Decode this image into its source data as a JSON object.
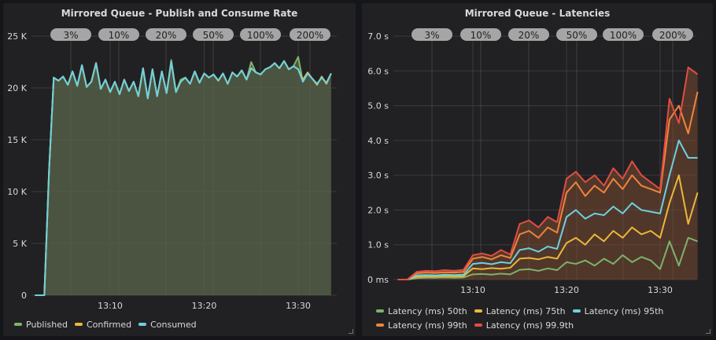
{
  "chart_data": [
    {
      "type": "area",
      "title": "Mirrored Queue - Publish and Consume Rate",
      "xlabel": "",
      "ylabel": "",
      "ylim": [
        0,
        25000
      ],
      "yticks": [
        "0",
        "5 K",
        "10 K",
        "15 K",
        "20 K",
        "25 K"
      ],
      "ytick_values": [
        0,
        5000,
        10000,
        15000,
        20000,
        25000
      ],
      "xticks": [
        "13:10",
        "13:20",
        "13:30"
      ],
      "grid": true,
      "legend": "bottom",
      "annotations": [
        "3%",
        "10%",
        "20%",
        "50%",
        "100%",
        "200%"
      ],
      "x": [
        "13:02:00",
        "13:02:30",
        "13:03:00",
        "13:03:30",
        "13:04:00",
        "13:04:30",
        "13:05:00",
        "13:05:30",
        "13:06:00",
        "13:06:30",
        "13:07:00",
        "13:07:30",
        "13:08:00",
        "13:08:30",
        "13:09:00",
        "13:09:30",
        "13:10:00",
        "13:10:30",
        "13:11:00",
        "13:11:30",
        "13:12:00",
        "13:12:30",
        "13:13:00",
        "13:13:30",
        "13:14:00",
        "13:14:30",
        "13:15:00",
        "13:15:30",
        "13:16:00",
        "13:16:30",
        "13:17:00",
        "13:17:30",
        "13:18:00",
        "13:18:30",
        "13:19:00",
        "13:19:30",
        "13:20:00",
        "13:20:30",
        "13:21:00",
        "13:21:30",
        "13:22:00",
        "13:22:30",
        "13:23:00",
        "13:23:30",
        "13:24:00",
        "13:24:30",
        "13:25:00",
        "13:25:30",
        "13:26:00",
        "13:26:30",
        "13:27:00",
        "13:27:30",
        "13:28:00",
        "13:28:30",
        "13:29:00",
        "13:29:30",
        "13:30:00",
        "13:30:30",
        "13:31:00",
        "13:31:30",
        "13:32:00",
        "13:32:30",
        "13:33:00",
        "13:33:30"
      ],
      "series": [
        {
          "name": "Published",
          "color": "#7eb26d",
          "values": [
            0,
            0,
            0,
            12000,
            21000,
            20700,
            21100,
            20300,
            21600,
            20200,
            22200,
            20100,
            20600,
            22400,
            19900,
            20800,
            19600,
            20600,
            19400,
            20800,
            19700,
            20600,
            19200,
            21900,
            19000,
            21800,
            19200,
            21600,
            19500,
            22700,
            19600,
            20800,
            21000,
            20400,
            21600,
            20500,
            21400,
            21000,
            21300,
            20700,
            21400,
            20400,
            21500,
            21100,
            21700,
            20800,
            22500,
            21500,
            21300,
            21800,
            22000,
            22400,
            21900,
            22600,
            21800,
            22100,
            23000,
            20600,
            21400,
            20900,
            20400,
            21000,
            20500,
            21400
          ]
        },
        {
          "name": "Confirmed",
          "color": "#eab839",
          "values": [
            0,
            0,
            0,
            12000,
            21000,
            20700,
            21100,
            20300,
            21600,
            20200,
            22200,
            20100,
            20600,
            22400,
            19900,
            20800,
            19600,
            20600,
            19400,
            20800,
            19700,
            20600,
            19200,
            21900,
            19000,
            21800,
            19200,
            21600,
            19500,
            22500,
            19600,
            20600,
            21000,
            20400,
            21600,
            20500,
            21400,
            21000,
            21300,
            20700,
            21400,
            20400,
            21500,
            21100,
            21700,
            20800,
            21900,
            21500,
            21300,
            21800,
            22000,
            22400,
            21900,
            22600,
            21800,
            22100,
            21800,
            20800,
            21500,
            20900,
            20300,
            21100,
            20400,
            21400
          ]
        },
        {
          "name": "Consumed",
          "color": "#6ed0e0",
          "values": [
            0,
            0,
            0,
            12000,
            21000,
            20700,
            21100,
            20300,
            21600,
            20200,
            22200,
            20100,
            20600,
            22400,
            19900,
            20800,
            19600,
            20600,
            19400,
            20800,
            19700,
            20600,
            19200,
            21900,
            19000,
            21800,
            19200,
            21600,
            19500,
            22500,
            19600,
            20600,
            21000,
            20400,
            21600,
            20500,
            21400,
            21000,
            21300,
            20700,
            21400,
            20400,
            21500,
            21100,
            21700,
            20800,
            21900,
            21500,
            21300,
            21800,
            22000,
            22400,
            21900,
            22600,
            21800,
            22100,
            21800,
            20600,
            21400,
            20900,
            20400,
            21000,
            20500,
            21400
          ]
        }
      ]
    },
    {
      "type": "line",
      "title": "Mirrored Queue - Latencies",
      "xlabel": "",
      "ylabel": "",
      "ylim": [
        0,
        7
      ],
      "yticks": [
        "0 ms",
        "1.0 s",
        "2.0 s",
        "3.0 s",
        "4.0 s",
        "5.0 s",
        "6.0 s",
        "7.0 s"
      ],
      "ytick_values": [
        0,
        1,
        2,
        3,
        4,
        5,
        6,
        7
      ],
      "xticks": [
        "13:10",
        "13:20",
        "13:30"
      ],
      "grid": true,
      "legend": "bottom",
      "annotations": [
        "3%",
        "10%",
        "20%",
        "50%",
        "100%",
        "200%"
      ],
      "x": [
        "13:02",
        "13:03",
        "13:04",
        "13:05",
        "13:06",
        "13:07",
        "13:08",
        "13:09",
        "13:10",
        "13:11",
        "13:12",
        "13:13",
        "13:14",
        "13:15",
        "13:16",
        "13:17",
        "13:18",
        "13:19",
        "13:20",
        "13:21",
        "13:22",
        "13:23",
        "13:24",
        "13:25",
        "13:26",
        "13:27",
        "13:28",
        "13:29",
        "13:30",
        "13:31",
        "13:32",
        "13:33",
        "13:34"
      ],
      "series": [
        {
          "name": "Latency (ms) 50th",
          "color": "#7eb26d",
          "values": [
            0,
            0,
            0.04,
            0.05,
            0.05,
            0.06,
            0.05,
            0.06,
            0.15,
            0.16,
            0.14,
            0.17,
            0.15,
            0.28,
            0.3,
            0.25,
            0.32,
            0.27,
            0.5,
            0.45,
            0.55,
            0.4,
            0.6,
            0.45,
            0.7,
            0.5,
            0.65,
            0.55,
            0.3,
            1.1,
            0.4,
            1.2,
            1.1
          ]
        },
        {
          "name": "Latency (ms) 75th",
          "color": "#eab839",
          "values": [
            0,
            0,
            0.08,
            0.09,
            0.09,
            0.1,
            0.09,
            0.1,
            0.32,
            0.3,
            0.33,
            0.31,
            0.34,
            0.6,
            0.62,
            0.58,
            0.65,
            0.6,
            1.05,
            1.2,
            1.0,
            1.3,
            1.1,
            1.4,
            1.2,
            1.5,
            1.3,
            1.4,
            1.2,
            2.2,
            3.0,
            1.6,
            2.5
          ]
        },
        {
          "name": "Latency (ms) 95th",
          "color": "#6ed0e0",
          "values": [
            0,
            0,
            0.12,
            0.13,
            0.12,
            0.14,
            0.13,
            0.14,
            0.45,
            0.48,
            0.44,
            0.5,
            0.47,
            0.85,
            0.9,
            0.8,
            0.95,
            0.88,
            1.8,
            2.0,
            1.75,
            1.9,
            1.85,
            2.1,
            1.9,
            2.2,
            2.0,
            1.95,
            1.9,
            3.0,
            4.0,
            3.5,
            3.5
          ]
        },
        {
          "name": "Latency (ms) 99th",
          "color": "#ef843c",
          "values": [
            0,
            0,
            0.18,
            0.2,
            0.19,
            0.21,
            0.2,
            0.22,
            0.6,
            0.65,
            0.58,
            0.7,
            0.62,
            1.3,
            1.4,
            1.2,
            1.5,
            1.35,
            2.5,
            2.8,
            2.4,
            2.7,
            2.5,
            2.9,
            2.6,
            3.0,
            2.7,
            2.6,
            2.5,
            4.6,
            5.0,
            4.2,
            5.4
          ]
        },
        {
          "name": "Latency (ms) 99.9th",
          "color": "#e24d42",
          "values": [
            0,
            0,
            0.22,
            0.25,
            0.24,
            0.27,
            0.25,
            0.28,
            0.7,
            0.75,
            0.68,
            0.85,
            0.72,
            1.6,
            1.7,
            1.5,
            1.8,
            1.65,
            2.9,
            3.1,
            2.8,
            3.0,
            2.7,
            3.2,
            2.9,
            3.4,
            3.0,
            2.8,
            2.6,
            5.2,
            4.5,
            6.1,
            5.9
          ]
        }
      ]
    }
  ]
}
